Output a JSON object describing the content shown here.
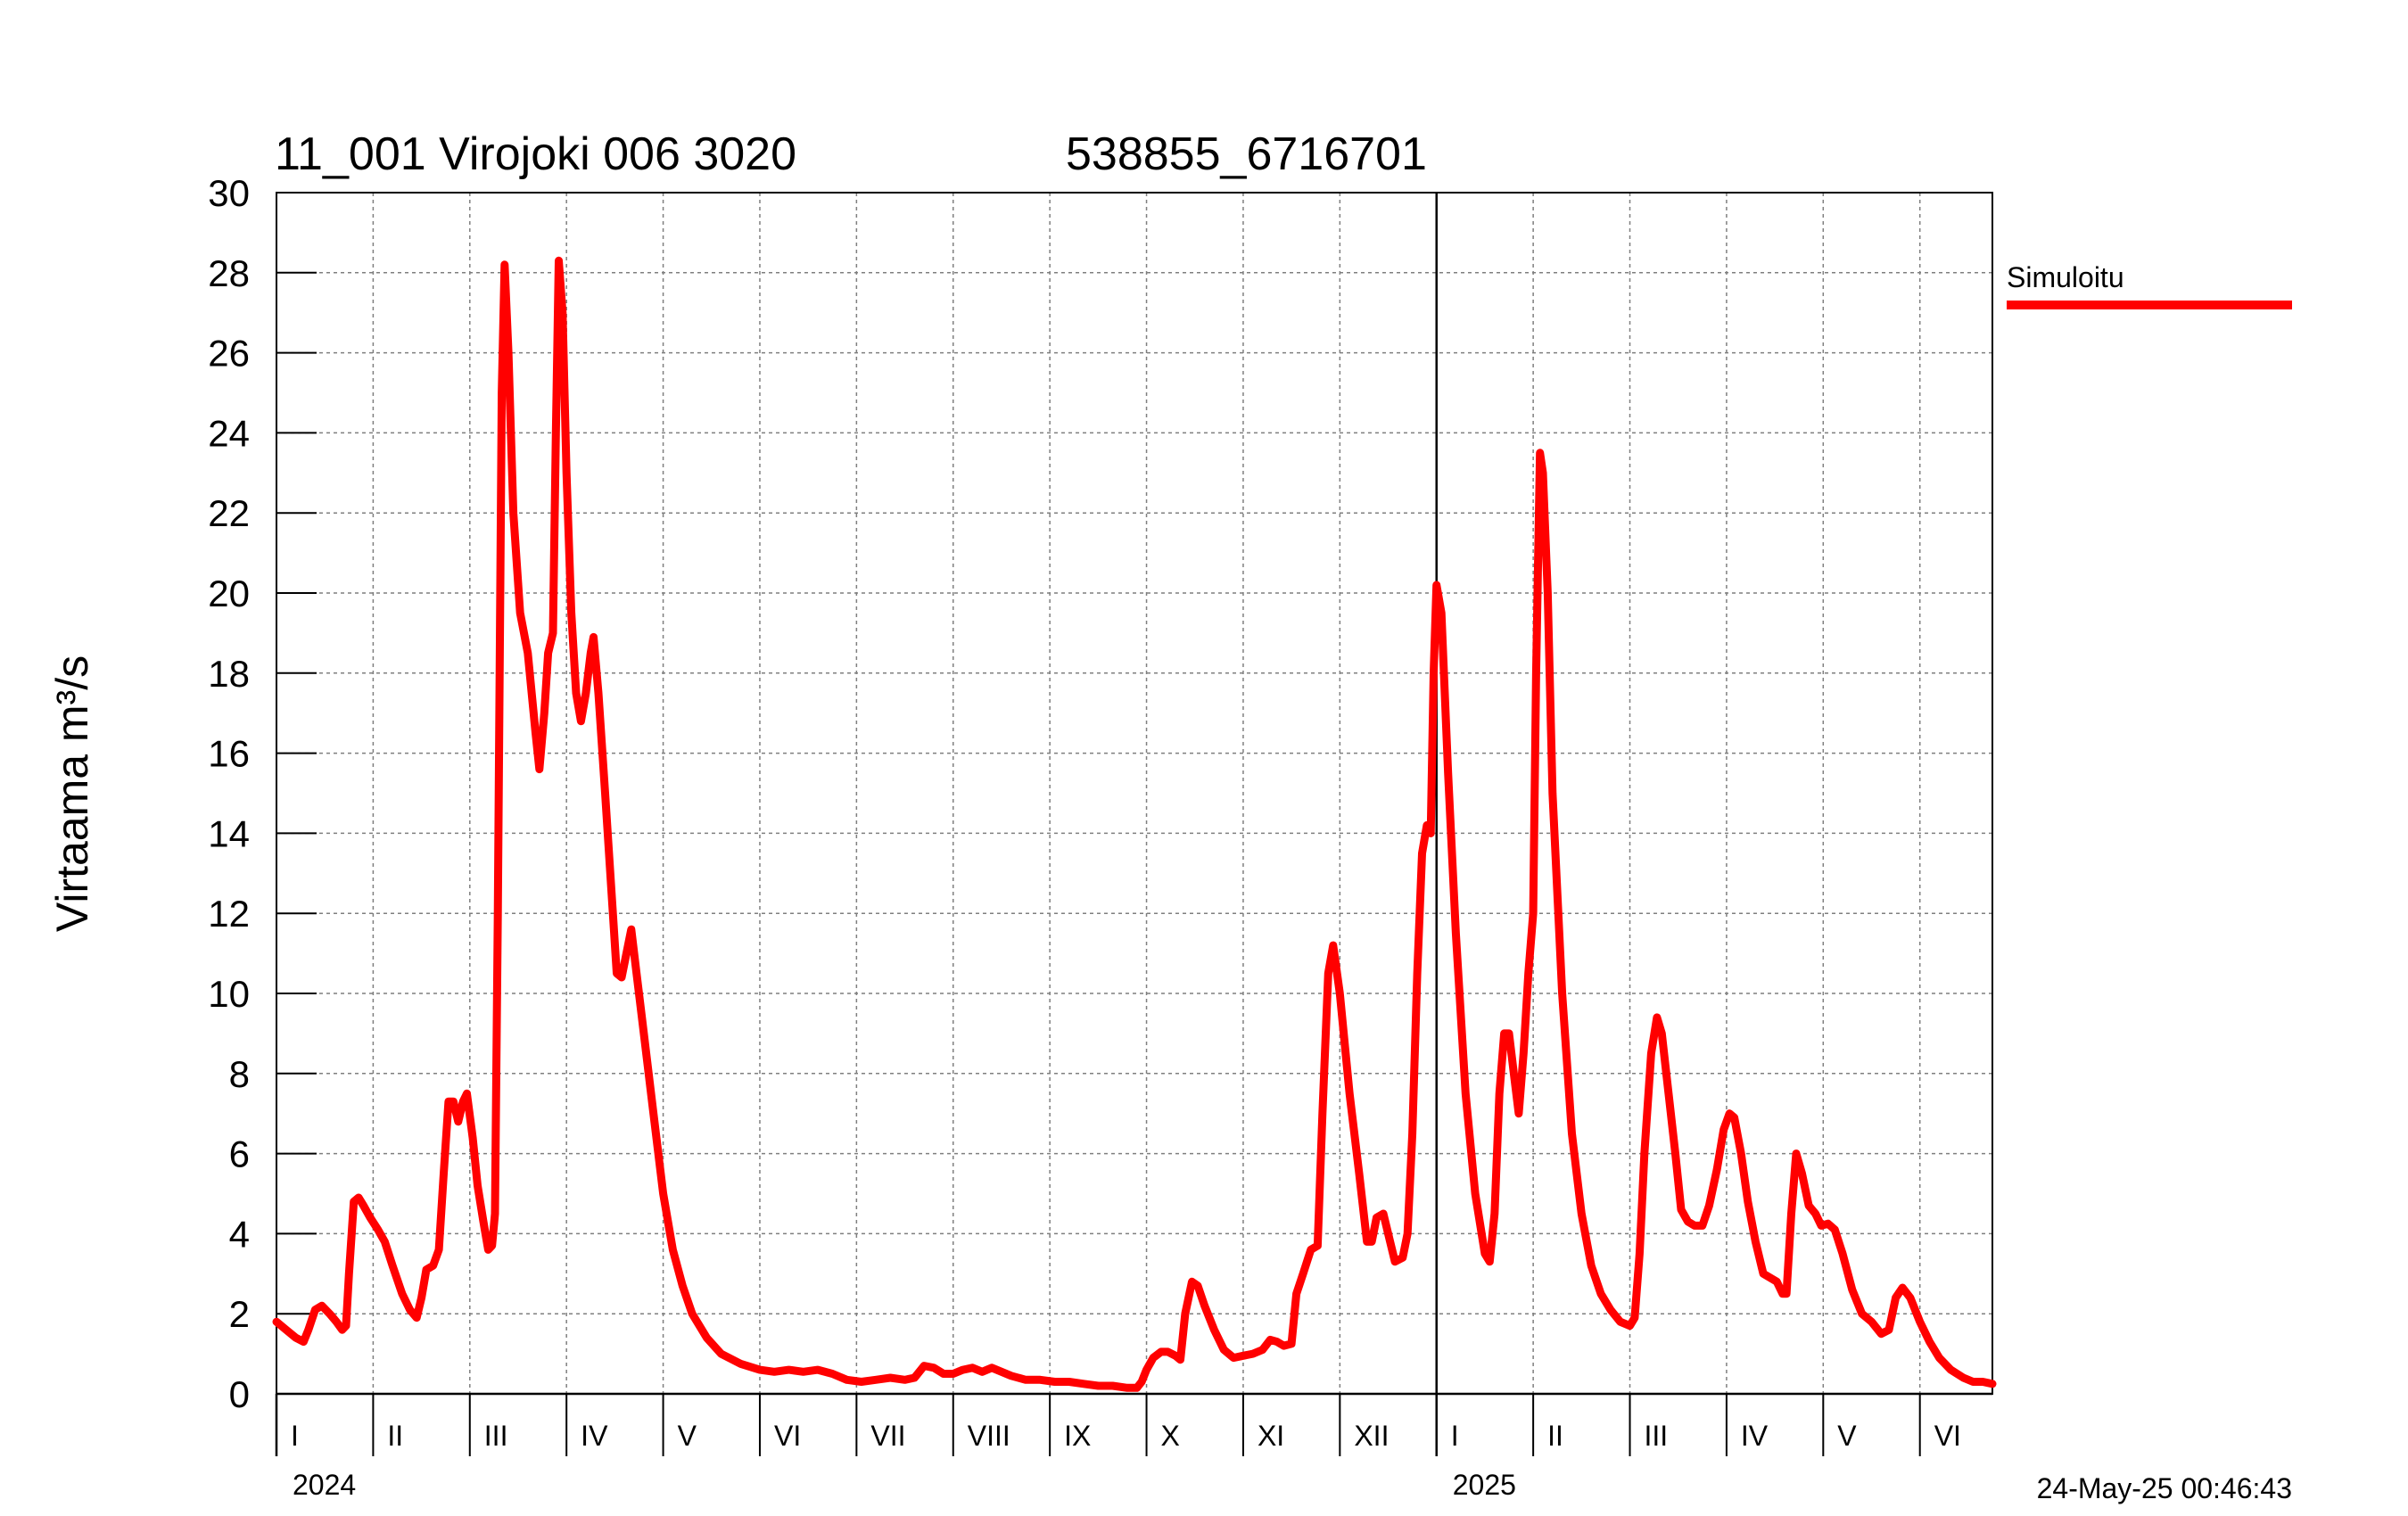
{
  "chart_data": {
    "type": "line",
    "title_left": "11_001 Virojoki 006 3020",
    "title_right": "538855_6716701",
    "ylabel": "Virtaama m³/s",
    "ylim": [
      0,
      30
    ],
    "yticks": [
      "0",
      "2",
      "4",
      "6",
      "8",
      "10",
      "12",
      "14",
      "16",
      "18",
      "20",
      "22",
      "24",
      "26",
      "28",
      "30"
    ],
    "months": [
      "I",
      "II",
      "III",
      "IV",
      "V",
      "VI",
      "VII",
      "VIII",
      "IX",
      "X",
      "XI",
      "XII",
      "I",
      "II",
      "III",
      "IV",
      "V",
      "VI"
    ],
    "years": [
      "2024",
      "2025"
    ],
    "legend": "Simuloitu",
    "timestamp": "24-May-25 00:46:43",
    "series_color": "#ff0000",
    "x_unit": "month_index_from_jan_2024",
    "x_range": [
      0,
      17.75
    ],
    "series": [
      {
        "name": "Simuloitu",
        "points": [
          [
            0.0,
            1.8
          ],
          [
            0.1,
            1.6
          ],
          [
            0.2,
            1.4
          ],
          [
            0.28,
            1.3
          ],
          [
            0.33,
            1.6
          ],
          [
            0.4,
            2.1
          ],
          [
            0.47,
            2.2
          ],
          [
            0.55,
            2.0
          ],
          [
            0.62,
            1.8
          ],
          [
            0.68,
            1.6
          ],
          [
            0.72,
            1.7
          ],
          [
            0.75,
            3.0
          ],
          [
            0.8,
            4.8
          ],
          [
            0.85,
            4.9
          ],
          [
            0.9,
            4.7
          ],
          [
            0.97,
            4.4
          ],
          [
            1.05,
            4.1
          ],
          [
            1.12,
            3.8
          ],
          [
            1.2,
            3.2
          ],
          [
            1.3,
            2.5
          ],
          [
            1.38,
            2.1
          ],
          [
            1.45,
            1.9
          ],
          [
            1.5,
            2.4
          ],
          [
            1.55,
            3.1
          ],
          [
            1.62,
            3.2
          ],
          [
            1.68,
            3.6
          ],
          [
            1.73,
            5.5
          ],
          [
            1.78,
            7.3
          ],
          [
            1.83,
            7.3
          ],
          [
            1.88,
            6.8
          ],
          [
            1.93,
            7.3
          ],
          [
            1.97,
            7.5
          ],
          [
            2.03,
            6.4
          ],
          [
            2.08,
            5.2
          ],
          [
            2.14,
            4.3
          ],
          [
            2.19,
            3.6
          ],
          [
            2.23,
            3.7
          ],
          [
            2.26,
            4.5
          ],
          [
            2.29,
            12.0
          ],
          [
            2.33,
            25.0
          ],
          [
            2.36,
            28.2
          ],
          [
            2.4,
            26.0
          ],
          [
            2.45,
            22.0
          ],
          [
            2.52,
            19.5
          ],
          [
            2.6,
            18.5
          ],
          [
            2.68,
            16.5
          ],
          [
            2.72,
            15.6
          ],
          [
            2.77,
            17.0
          ],
          [
            2.81,
            18.5
          ],
          [
            2.86,
            19.0
          ],
          [
            2.89,
            24.0
          ],
          [
            2.92,
            28.3
          ],
          [
            2.96,
            27.0
          ],
          [
            3.0,
            23.0
          ],
          [
            3.05,
            19.5
          ],
          [
            3.1,
            17.5
          ],
          [
            3.15,
            16.8
          ],
          [
            3.2,
            17.5
          ],
          [
            3.25,
            18.5
          ],
          [
            3.28,
            18.9
          ],
          [
            3.33,
            17.5
          ],
          [
            3.4,
            15.0
          ],
          [
            3.48,
            12.0
          ],
          [
            3.52,
            10.5
          ],
          [
            3.57,
            10.4
          ],
          [
            3.62,
            11.0
          ],
          [
            3.67,
            11.6
          ],
          [
            3.72,
            10.6
          ],
          [
            3.8,
            9.0
          ],
          [
            3.9,
            7.0
          ],
          [
            4.0,
            5.0
          ],
          [
            4.1,
            3.6
          ],
          [
            4.2,
            2.7
          ],
          [
            4.3,
            2.0
          ],
          [
            4.45,
            1.4
          ],
          [
            4.6,
            1.0
          ],
          [
            4.8,
            0.75
          ],
          [
            5.0,
            0.6
          ],
          [
            5.15,
            0.55
          ],
          [
            5.3,
            0.6
          ],
          [
            5.45,
            0.55
          ],
          [
            5.6,
            0.6
          ],
          [
            5.75,
            0.5
          ],
          [
            5.9,
            0.35
          ],
          [
            6.05,
            0.3
          ],
          [
            6.2,
            0.35
          ],
          [
            6.35,
            0.4
          ],
          [
            6.5,
            0.35
          ],
          [
            6.6,
            0.4
          ],
          [
            6.7,
            0.7
          ],
          [
            6.8,
            0.65
          ],
          [
            6.9,
            0.5
          ],
          [
            7.0,
            0.5
          ],
          [
            7.1,
            0.6
          ],
          [
            7.2,
            0.65
          ],
          [
            7.3,
            0.55
          ],
          [
            7.4,
            0.65
          ],
          [
            7.5,
            0.55
          ],
          [
            7.6,
            0.45
          ],
          [
            7.75,
            0.35
          ],
          [
            7.9,
            0.35
          ],
          [
            8.05,
            0.3
          ],
          [
            8.2,
            0.3
          ],
          [
            8.35,
            0.25
          ],
          [
            8.5,
            0.2
          ],
          [
            8.65,
            0.2
          ],
          [
            8.8,
            0.15
          ],
          [
            8.9,
            0.15
          ],
          [
            8.95,
            0.3
          ],
          [
            9.0,
            0.6
          ],
          [
            9.07,
            0.9
          ],
          [
            9.15,
            1.05
          ],
          [
            9.22,
            1.05
          ],
          [
            9.3,
            0.95
          ],
          [
            9.35,
            0.85
          ],
          [
            9.4,
            2.0
          ],
          [
            9.47,
            2.8
          ],
          [
            9.53,
            2.7
          ],
          [
            9.6,
            2.2
          ],
          [
            9.7,
            1.6
          ],
          [
            9.8,
            1.1
          ],
          [
            9.9,
            0.9
          ],
          [
            10.0,
            0.95
          ],
          [
            10.1,
            1.0
          ],
          [
            10.2,
            1.1
          ],
          [
            10.28,
            1.35
          ],
          [
            10.35,
            1.3
          ],
          [
            10.42,
            1.2
          ],
          [
            10.5,
            1.25
          ],
          [
            10.55,
            2.5
          ],
          [
            10.62,
            3.0
          ],
          [
            10.7,
            3.6
          ],
          [
            10.77,
            3.7
          ],
          [
            10.82,
            7.0
          ],
          [
            10.88,
            10.5
          ],
          [
            10.93,
            11.2
          ],
          [
            11.0,
            10.0
          ],
          [
            11.1,
            7.5
          ],
          [
            11.2,
            5.5
          ],
          [
            11.28,
            3.8
          ],
          [
            11.33,
            3.8
          ],
          [
            11.38,
            4.4
          ],
          [
            11.45,
            4.5
          ],
          [
            11.5,
            4.0
          ],
          [
            11.57,
            3.3
          ],
          [
            11.65,
            3.4
          ],
          [
            11.7,
            4.0
          ],
          [
            11.75,
            6.5
          ],
          [
            11.8,
            10.5
          ],
          [
            11.85,
            13.5
          ],
          [
            11.9,
            14.2
          ],
          [
            11.94,
            14.0
          ],
          [
            11.97,
            18.0
          ],
          [
            12.0,
            20.2
          ],
          [
            12.05,
            19.5
          ],
          [
            12.12,
            15.5
          ],
          [
            12.2,
            11.5
          ],
          [
            12.3,
            7.5
          ],
          [
            12.4,
            5.0
          ],
          [
            12.5,
            3.5
          ],
          [
            12.55,
            3.3
          ],
          [
            12.6,
            4.5
          ],
          [
            12.65,
            7.5
          ],
          [
            12.7,
            9.0
          ],
          [
            12.75,
            9.0
          ],
          [
            12.8,
            8.0
          ],
          [
            12.85,
            7.0
          ],
          [
            12.9,
            8.5
          ],
          [
            12.95,
            10.5
          ],
          [
            13.0,
            12.0
          ],
          [
            13.03,
            18.0
          ],
          [
            13.07,
            23.5
          ],
          [
            13.1,
            23.0
          ],
          [
            13.15,
            20.0
          ],
          [
            13.2,
            15.0
          ],
          [
            13.3,
            10.0
          ],
          [
            13.4,
            6.5
          ],
          [
            13.5,
            4.5
          ],
          [
            13.6,
            3.2
          ],
          [
            13.7,
            2.5
          ],
          [
            13.8,
            2.1
          ],
          [
            13.9,
            1.8
          ],
          [
            14.0,
            1.7
          ],
          [
            14.05,
            1.9
          ],
          [
            14.1,
            3.5
          ],
          [
            14.15,
            6.0
          ],
          [
            14.22,
            8.5
          ],
          [
            14.28,
            9.4
          ],
          [
            14.33,
            9.0
          ],
          [
            14.4,
            7.5
          ],
          [
            14.47,
            6.0
          ],
          [
            14.53,
            4.6
          ],
          [
            14.6,
            4.3
          ],
          [
            14.67,
            4.2
          ],
          [
            14.75,
            4.2
          ],
          [
            14.82,
            4.7
          ],
          [
            14.9,
            5.6
          ],
          [
            14.97,
            6.6
          ],
          [
            15.03,
            7.0
          ],
          [
            15.08,
            6.9
          ],
          [
            15.15,
            6.0
          ],
          [
            15.22,
            4.8
          ],
          [
            15.3,
            3.8
          ],
          [
            15.38,
            3.0
          ],
          [
            15.45,
            2.9
          ],
          [
            15.52,
            2.8
          ],
          [
            15.58,
            2.5
          ],
          [
            15.62,
            2.5
          ],
          [
            15.67,
            4.5
          ],
          [
            15.72,
            6.0
          ],
          [
            15.78,
            5.5
          ],
          [
            15.85,
            4.7
          ],
          [
            15.92,
            4.5
          ],
          [
            15.98,
            4.2
          ],
          [
            16.05,
            4.25
          ],
          [
            16.12,
            4.1
          ],
          [
            16.2,
            3.5
          ],
          [
            16.3,
            2.6
          ],
          [
            16.4,
            2.0
          ],
          [
            16.5,
            1.8
          ],
          [
            16.6,
            1.5
          ],
          [
            16.68,
            1.6
          ],
          [
            16.75,
            2.4
          ],
          [
            16.82,
            2.65
          ],
          [
            16.9,
            2.4
          ],
          [
            17.0,
            1.8
          ],
          [
            17.1,
            1.3
          ],
          [
            17.2,
            0.9
          ],
          [
            17.32,
            0.6
          ],
          [
            17.45,
            0.4
          ],
          [
            17.55,
            0.3
          ],
          [
            17.65,
            0.3
          ],
          [
            17.75,
            0.25
          ]
        ]
      }
    ]
  }
}
